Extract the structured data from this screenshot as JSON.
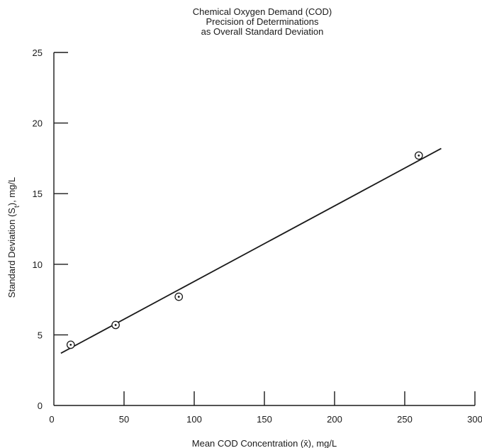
{
  "chart_data": {
    "type": "scatter",
    "title": [
      "Chemical Oxygen Demand (COD)",
      "Precision of Determinations",
      "as Overall Standard Deviation"
    ],
    "xlabel": "Mean COD Concentration (x̄), mg/L",
    "ylabel": "Standard Deviation (St), mg/L",
    "xlim": [
      0,
      300
    ],
    "ylim": [
      0,
      25
    ],
    "x_ticks": [
      0,
      50,
      100,
      150,
      200,
      250,
      300
    ],
    "y_ticks": [
      0,
      5,
      10,
      15,
      20,
      25
    ],
    "grid": false,
    "series": [
      {
        "points": [
          {
            "x": 12,
            "y": 4.3
          },
          {
            "x": 44,
            "y": 5.7
          },
          {
            "x": 89,
            "y": 7.7
          },
          {
            "x": 260,
            "y": 17.7
          }
        ]
      }
    ],
    "fit_line": {
      "x": [
        5,
        276
      ],
      "y": [
        3.7,
        18.2
      ]
    }
  }
}
